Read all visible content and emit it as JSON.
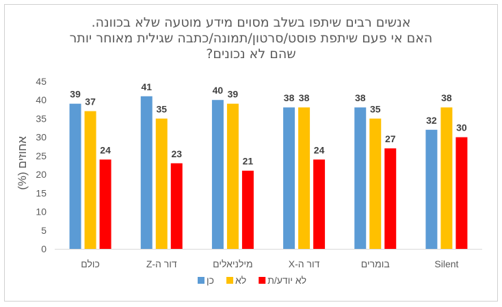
{
  "chart_data": {
    "type": "bar",
    "title_lines": [
      "אנשים רבים שיתפו בשלב מסוים מידע מוטעה שלא בכוונה.",
      "האם אי פעם שיתפת פוסט/סרטון/תמונה/כתבה שגילית מאוחר יותר",
      "שהם לא נכונים?"
    ],
    "categories": [
      "כולם",
      "דור ה-Z",
      "מילניאלים",
      "דור ה-X",
      "בומרים",
      "Silent"
    ],
    "series": [
      {
        "name": "כן",
        "color": "#5b9bd5",
        "values": [
          39,
          41,
          40,
          38,
          38,
          32
        ]
      },
      {
        "name": "לא",
        "color": "#ffc000",
        "values": [
          37,
          35,
          39,
          38,
          35,
          38
        ]
      },
      {
        "name": "לא יודע/ת",
        "color": "#ff0000",
        "values": [
          24,
          23,
          21,
          24,
          27,
          30
        ]
      }
    ],
    "ylabel": "אחוזים (%)",
    "ylim": [
      0,
      45
    ],
    "yticks": [
      0,
      5,
      10,
      15,
      20,
      25,
      30,
      35,
      40,
      45
    ],
    "grid": false,
    "legend_position": "bottom"
  }
}
